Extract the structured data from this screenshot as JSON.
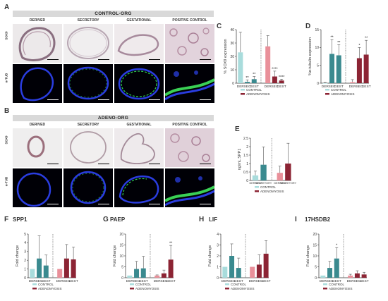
{
  "colors": {
    "control": "#a9dcdc",
    "control_dark": "#3a8a8f",
    "adeno_light": "#e9909a",
    "adeno_dark": "#8c2434",
    "bar_error": "#555555"
  },
  "panelA": {
    "letter": "A",
    "banner": "CONTROL-ORG",
    "columns": [
      "DERIVED",
      "SECRETORY",
      "GESTATIONAL",
      "POSITIVE CONTROL"
    ],
    "rows": [
      "SOX9",
      "α-TUB"
    ]
  },
  "panelB": {
    "letter": "B",
    "banner": "ADENO-ORG",
    "columns": [
      "DERIVED",
      "SECRETORY",
      "GESTATIONAL",
      "POSITIVE CONTROL"
    ],
    "rows": [
      "SOX9",
      "α-TUB"
    ]
  },
  "legend": {
    "control": "CONTROL",
    "adeno": "ADENOMYOSIS"
  },
  "chart_data": [
    {
      "id": "C",
      "type": "bar",
      "categories": [
        "DER",
        "SEC",
        "GEST",
        "DER",
        "SEC",
        "GEST"
      ],
      "values": [
        23,
        1,
        3,
        27.5,
        5,
        2
      ],
      "errors": [
        15,
        1.5,
        2,
        8,
        4,
        1
      ],
      "significance": [
        "",
        "**",
        "**",
        "",
        "****",
        "****"
      ],
      "ylabel": "% SOX9 expression",
      "ylim": [
        0,
        40
      ],
      "yticks": [
        0,
        10,
        20,
        30,
        40
      ]
    },
    {
      "id": "D",
      "type": "bar",
      "categories": [
        "DER",
        "SEC",
        "GEST",
        "DER",
        "SEC",
        "GEST"
      ],
      "values": [
        0,
        8.2,
        7.8,
        0.3,
        7,
        8
      ],
      "errors": [
        0.2,
        4,
        3,
        0.7,
        3,
        4
      ],
      "significance": [
        "",
        "**",
        "**",
        "",
        "*",
        "**"
      ],
      "ylabel": "%α-tubulin expression",
      "ylim": [
        0,
        15
      ],
      "yticks": [
        0,
        5,
        10,
        15
      ]
    },
    {
      "id": "E",
      "type": "bar",
      "categories": [
        "DERIVED",
        "SECRETORY",
        "DERIVED",
        "SECRETORY"
      ],
      "values": [
        0.3,
        0.93,
        0.45,
        1.0
      ],
      "errors": [
        0.25,
        1.05,
        0.4,
        1.2
      ],
      "ylabel": "ng/mL SPP1",
      "ylim": [
        0,
        2.5
      ],
      "yticks": [
        0.0,
        0.5,
        1.0,
        1.5,
        2.0,
        2.5
      ]
    },
    {
      "id": "F",
      "type": "bar",
      "title": "SPP1",
      "categories": [
        "DER",
        "SEC",
        "GEST",
        "DER",
        "SEC",
        "GEST"
      ],
      "values": [
        1,
        2.2,
        1.4,
        1,
        2.2,
        2.1
      ],
      "errors": [
        0,
        2.6,
        1.2,
        0,
        1.6,
        1.4
      ],
      "significance": [
        "",
        "",
        "",
        "",
        "",
        ""
      ],
      "ylabel": "Fold change",
      "ylim": [
        0,
        5
      ],
      "yticks": [
        0,
        1,
        2,
        3,
        4,
        5
      ]
    },
    {
      "id": "G",
      "type": "bar",
      "title": "PAEP",
      "categories": [
        "DER",
        "SEC",
        "GEST",
        "DER",
        "SEC",
        "GEST"
      ],
      "values": [
        1,
        4,
        4.3,
        1,
        2,
        8.3
      ],
      "errors": [
        0,
        3.5,
        5.5,
        0.3,
        1.5,
        6.5
      ],
      "significance": [
        "",
        "",
        "",
        "",
        "",
        "**"
      ],
      "ylabel": "Fold change",
      "ylim": [
        0,
        20
      ],
      "yticks": [
        0,
        5,
        10,
        15,
        20
      ]
    },
    {
      "id": "H",
      "type": "bar",
      "title": "LIF",
      "categories": [
        "DER",
        "SEC",
        "GEST",
        "DER",
        "SEC",
        "GEST"
      ],
      "values": [
        1,
        2,
        0.9,
        1,
        1.2,
        2.2
      ],
      "errors": [
        0,
        1.1,
        0.9,
        0,
        0.9,
        1.2
      ],
      "significance": [
        "",
        "",
        "",
        "",
        "",
        ""
      ],
      "ylabel": "Fold change",
      "ylim": [
        0,
        4
      ],
      "yticks": [
        0,
        1,
        2,
        3,
        4
      ]
    },
    {
      "id": "I",
      "type": "bar",
      "title": "17HSDB2",
      "categories": [
        "DER",
        "SEC",
        "GEST",
        "DER",
        "SEC",
        "GEST"
      ],
      "values": [
        1,
        4.5,
        8.8,
        1,
        2,
        1.5
      ],
      "errors": [
        0,
        3,
        5,
        0.6,
        1.2,
        1
      ],
      "significance": [
        "",
        "",
        "*",
        "",
        "",
        ""
      ],
      "ylabel": "Fold change",
      "ylim": [
        0,
        20
      ],
      "yticks": [
        0,
        5,
        10,
        15,
        20
      ]
    }
  ]
}
